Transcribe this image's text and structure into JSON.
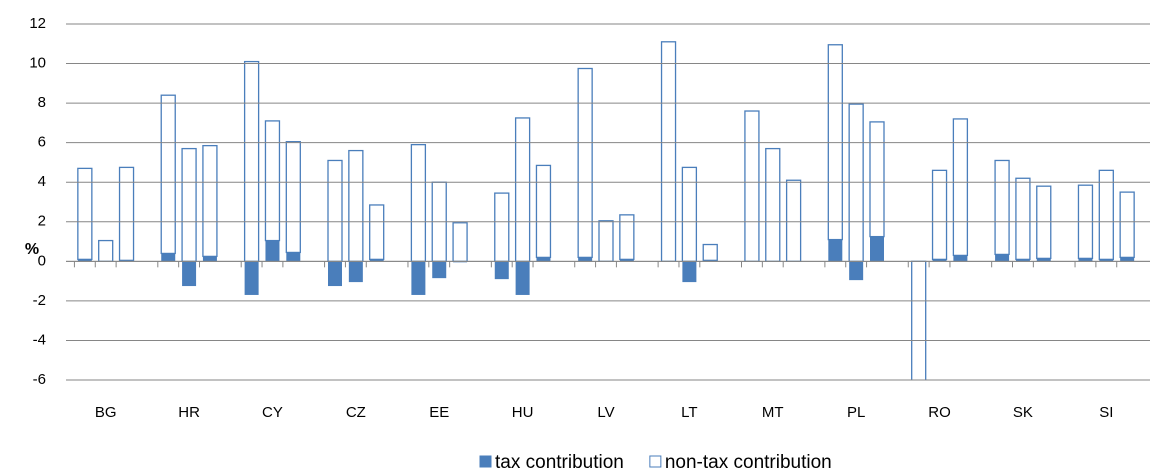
{
  "chart_data": {
    "type": "bar",
    "stacked": true,
    "y_label": "%",
    "categories": [
      null,
      "BG",
      null,
      null,
      "HR",
      null,
      null,
      "CY",
      null,
      null,
      "CZ",
      null,
      null,
      "EE",
      null,
      null,
      "HU",
      null,
      null,
      "LV",
      null,
      null,
      "LT",
      null,
      null,
      "MT",
      null,
      null,
      "PL",
      null,
      null,
      "RO",
      null,
      null,
      "SK",
      null,
      null,
      "SI",
      null
    ],
    "series": [
      {
        "name": "tax contribution",
        "color": "#4a7ebb",
        "fill": "solid",
        "values": [
          0.1,
          0,
          0.05,
          0.4,
          -1.25,
          0.25,
          -1.7,
          1.05,
          0.45,
          -1.25,
          -1.05,
          0.1,
          -1.7,
          -0.85,
          -0.05,
          -0.9,
          -1.7,
          0.2,
          0.2,
          0,
          0.1,
          0,
          -1.05,
          0.05,
          0,
          0,
          0,
          1.1,
          -0.95,
          1.25,
          0,
          0.1,
          0.3,
          0.35,
          0.1,
          0.15,
          0.15,
          0.1,
          0.2
        ]
      },
      {
        "name": "non-tax contribution",
        "color": "#4a7ebb",
        "fill": "outline",
        "values": [
          4.6,
          1.05,
          4.7,
          8.0,
          5.7,
          5.6,
          10.1,
          6.05,
          5.6,
          5.1,
          5.6,
          2.75,
          5.9,
          4.0,
          1.95,
          3.45,
          7.25,
          4.65,
          9.55,
          2.05,
          2.25,
          11.1,
          4.75,
          0.8,
          7.6,
          5.7,
          4.1,
          9.85,
          7.95,
          5.8,
          -6.5,
          4.5,
          6.9,
          4.75,
          4.1,
          3.65,
          3.7,
          4.5,
          3.3
        ]
      }
    ],
    "ylim": [
      -6,
      12
    ],
    "yticks": [
      -6,
      -4,
      -2,
      0,
      2,
      4,
      6,
      8,
      10,
      12
    ],
    "grid": true,
    "legend": "bottom"
  }
}
